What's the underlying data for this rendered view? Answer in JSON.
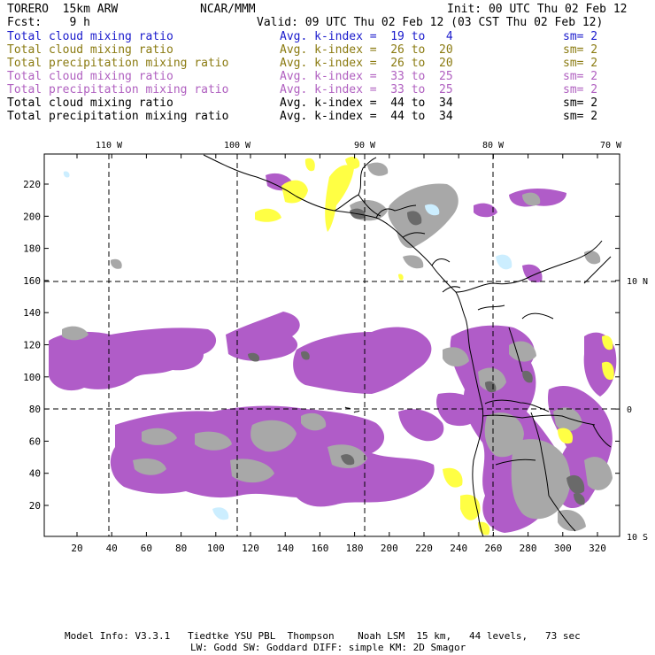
{
  "header": {
    "model": "TORERO  15km ARW",
    "org": "NCAR/MMM",
    "init": "Init: 00 UTC Thu 02 Feb 12",
    "fcst": "Fcst:    9 h",
    "valid": "Valid: 09 UTC Thu 02 Feb 12 (03 CST Thu 02 Feb 12)"
  },
  "legend": [
    {
      "label": "Total cloud mixing ratio",
      "kindex": "Avg. k-index =  19 to   4",
      "sm": "sm= 2",
      "color": "#1a1acc"
    },
    {
      "label": "Total cloud mixing ratio",
      "kindex": "Avg. k-index =  26 to  20",
      "sm": "sm= 2",
      "color": "#8a7a10"
    },
    {
      "label": "Total precipitation mixing ratio",
      "kindex": "Avg. k-index =  26 to  20",
      "sm": "sm= 2",
      "color": "#8a7a10"
    },
    {
      "label": "Total cloud mixing ratio",
      "kindex": "Avg. k-index =  33 to  25",
      "sm": "sm= 2",
      "color": "#b060c0"
    },
    {
      "label": "Total precipitation mixing ratio",
      "kindex": "Avg. k-index =  33 to  25",
      "sm": "sm= 2",
      "color": "#b060c0"
    },
    {
      "label": "Total cloud mixing ratio",
      "kindex": "Avg. k-index =  44 to  34",
      "sm": "sm= 2",
      "color": "#000000"
    },
    {
      "label": "Total precipitation mixing ratio",
      "kindex": "Avg. k-index =  44 to  34",
      "sm": "sm= 2",
      "color": "#000000"
    }
  ],
  "map": {
    "lon_labels": [
      "110 W",
      "100 W",
      "90 W",
      "80 W",
      "70 W"
    ],
    "lat_labels": [
      "10 N",
      "0",
      "10 S"
    ],
    "x_ticks": [
      "20",
      "40",
      "60",
      "80",
      "100",
      "120",
      "140",
      "160",
      "180",
      "200",
      "220",
      "240",
      "260",
      "280",
      "300",
      "320"
    ],
    "y_ticks": [
      "20",
      "40",
      "60",
      "80",
      "100",
      "120",
      "140",
      "160",
      "180",
      "200",
      "220"
    ],
    "colors": {
      "purple": "#b05cc8",
      "gray": "#a8a8a8",
      "darkgray": "#6a6a6a",
      "yellow": "#ffff44",
      "lightblue": "#cceeff",
      "border": "#000000"
    }
  },
  "footer": {
    "line1": "Model Info: V3.3.1   Tiedtke YSU PBL  Thompson    Noah LSM  15 km,   44 levels,   73 sec",
    "line2": "LW: Godd SW: Goddard DIFF: simple KM: 2D Smagor"
  }
}
